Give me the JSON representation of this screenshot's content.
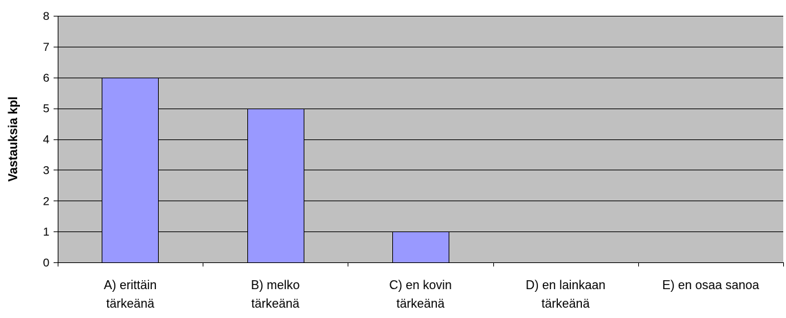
{
  "chart_data": {
    "type": "bar",
    "title": "",
    "xlabel": "",
    "ylabel": "Vastauksia kpl",
    "ylim": [
      0,
      8
    ],
    "yticks": [
      0,
      1,
      2,
      3,
      4,
      5,
      6,
      7,
      8
    ],
    "grid": true,
    "legend": "none",
    "categories": [
      [
        "A) erittäin",
        "tärkeänä"
      ],
      [
        "B) melko",
        "tärkeänä"
      ],
      [
        "C) en kovin",
        "tärkeänä"
      ],
      [
        "D) en lainkaan",
        "tärkeänä"
      ],
      [
        "E) en osaa sanoa"
      ]
    ],
    "values": [
      6,
      5,
      1,
      0,
      0
    ],
    "colors": {
      "plot_background": "#c0c0c0",
      "bar_fill": "#9999ff",
      "bar_stroke": "#000000",
      "gridline": "#000000"
    }
  }
}
